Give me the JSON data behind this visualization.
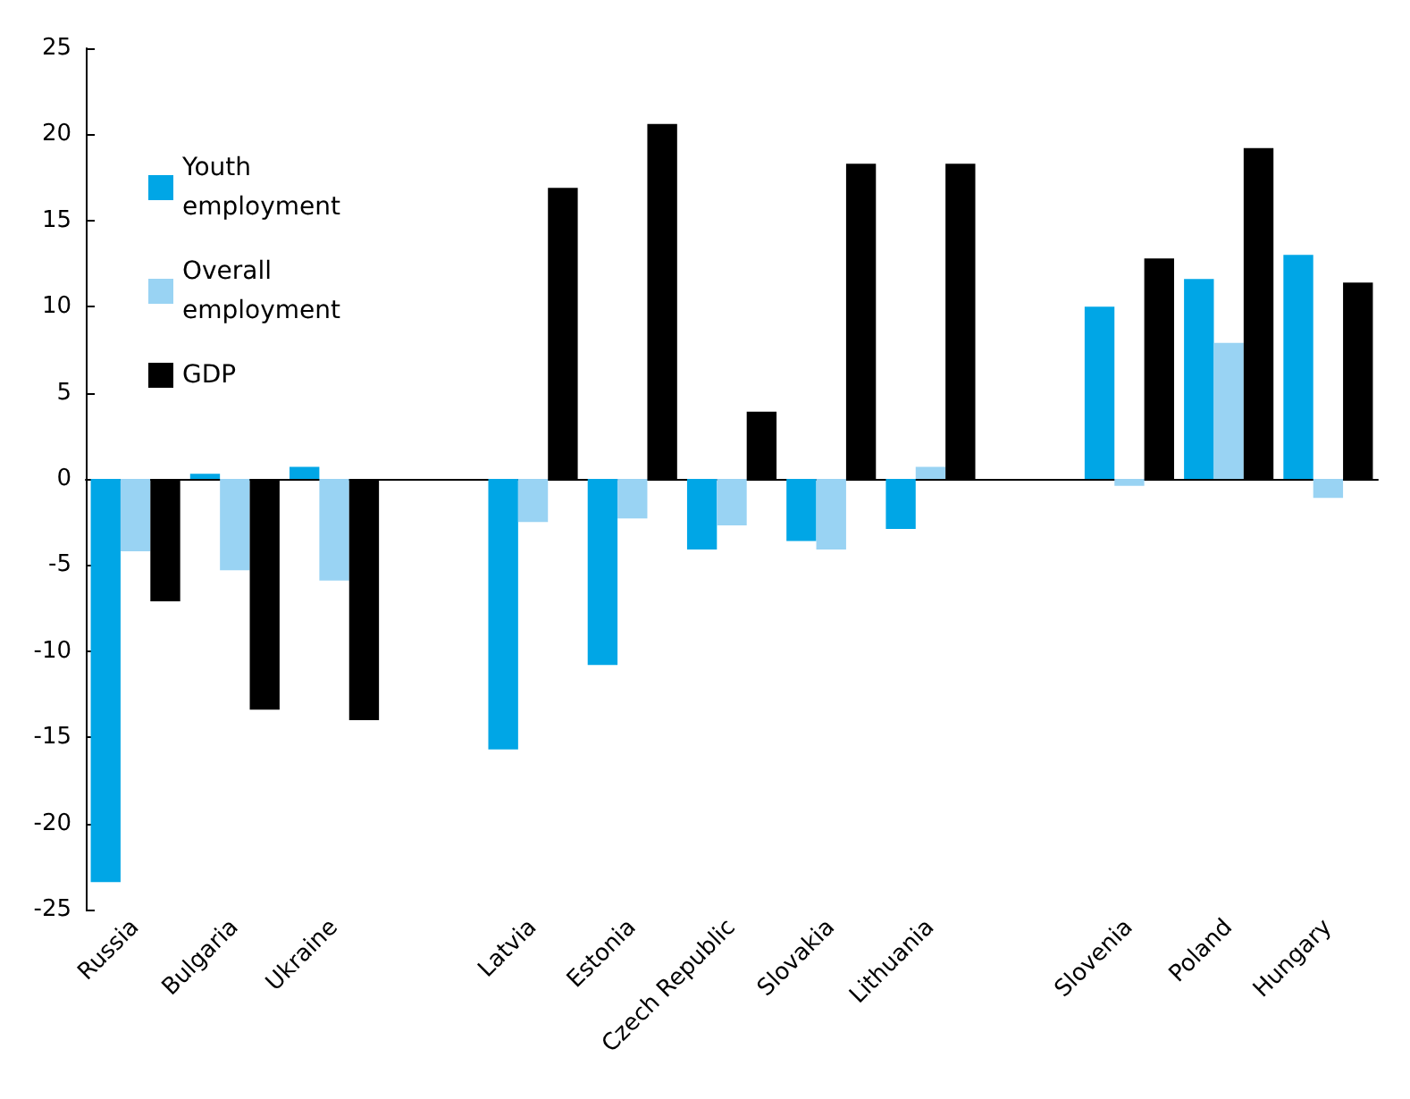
{
  "chart_data": {
    "type": "bar",
    "categories": [
      "Russia",
      "Bulgaria",
      "Ukraine",
      null,
      "Latvia",
      "Estonia",
      "Czech Republic",
      "Slovakia",
      "Lithuania",
      null,
      "Slovenia",
      "Poland",
      "Hungary"
    ],
    "series": [
      {
        "name": "Youth employment",
        "color": "#00a6e6",
        "values": [
          -23.4,
          0.3,
          0.7,
          null,
          -15.7,
          -10.8,
          -4.1,
          -3.6,
          -2.9,
          null,
          10.0,
          11.6,
          13.0
        ]
      },
      {
        "name": "Overall employment",
        "color": "#99d3f3",
        "values": [
          -4.2,
          -5.3,
          -5.9,
          null,
          -2.5,
          -2.3,
          -2.7,
          -4.1,
          0.7,
          null,
          -0.4,
          7.9,
          -1.1
        ]
      },
      {
        "name": "GDP",
        "color": "#000000",
        "values": [
          -7.1,
          -13.4,
          -14.0,
          null,
          16.9,
          20.6,
          3.9,
          18.3,
          18.3,
          null,
          12.8,
          19.2,
          11.4
        ]
      }
    ],
    "ylim": [
      -25,
      25
    ],
    "yticks": [
      -25,
      -20,
      -15,
      -10,
      -5,
      0,
      5,
      10,
      15,
      20,
      25
    ],
    "legend": "top left"
  }
}
